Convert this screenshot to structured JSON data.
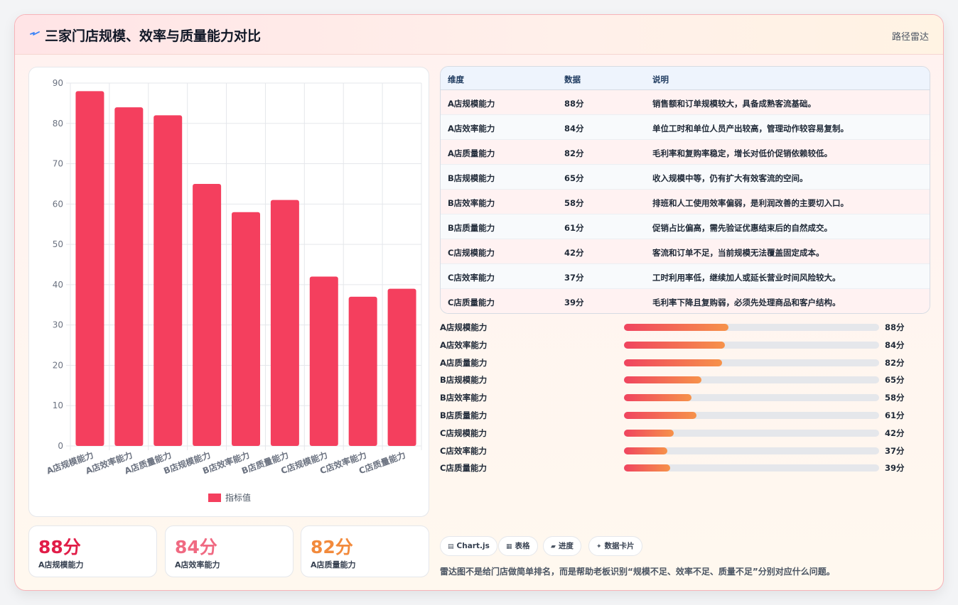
{
  "header": {
    "title": "三家门店规模、效率与质量能力对比",
    "tag": "路径雷达",
    "logo_icon": "lightning-icon"
  },
  "chart_data": {
    "type": "bar",
    "categories": [
      "A店规模能力",
      "A店效率能力",
      "A店质量能力",
      "B店规模能力",
      "B店效率能力",
      "B店质量能力",
      "C店规模能力",
      "C店效率能力",
      "C店质量能力"
    ],
    "series": [
      {
        "name": "指标值",
        "values": [
          88,
          84,
          82,
          65,
          58,
          61,
          42,
          37,
          39
        ],
        "color": "#f43f5e"
      }
    ],
    "title": "",
    "xlabel": "",
    "ylabel": "",
    "ylim": [
      0,
      90
    ],
    "yticks": [
      0,
      10,
      20,
      30,
      40,
      50,
      60,
      70,
      80,
      90
    ],
    "grid": true,
    "legend": "bottom"
  },
  "kpis": [
    {
      "value": "88分",
      "label": "A店规模能力",
      "color": "#e11d48"
    },
    {
      "value": "84分",
      "label": "A店效率能力",
      "color": "#f06a82"
    },
    {
      "value": "82分",
      "label": "A店质量能力",
      "color": "#f28a3c"
    }
  ],
  "table": {
    "headers": [
      "维度",
      "数据",
      "说明"
    ],
    "rows": [
      {
        "dim": "A店规模能力",
        "val": "88分",
        "desc": "销售额和订单规模较大，具备成熟客流基础。"
      },
      {
        "dim": "A店效率能力",
        "val": "84分",
        "desc": "单位工时和单位人员产出较高，管理动作较容易复制。"
      },
      {
        "dim": "A店质量能力",
        "val": "82分",
        "desc": "毛利率和复购率稳定，增长对低价促销依赖较低。"
      },
      {
        "dim": "B店规模能力",
        "val": "65分",
        "desc": "收入规模中等，仍有扩大有效客流的空间。"
      },
      {
        "dim": "B店效率能力",
        "val": "58分",
        "desc": "排班和人工使用效率偏弱，是利润改善的主要切入口。"
      },
      {
        "dim": "B店质量能力",
        "val": "61分",
        "desc": "促销占比偏高，需先验证优惠结束后的自然成交。"
      },
      {
        "dim": "C店规模能力",
        "val": "42分",
        "desc": "客流和订单不足，当前规模无法覆盖固定成本。"
      },
      {
        "dim": "C店效率能力",
        "val": "37分",
        "desc": "工时利用率低，继续加人或延长营业时间风险较大。"
      },
      {
        "dim": "C店质量能力",
        "val": "39分",
        "desc": "毛利率下降且复购弱，必须先处理商品和客户结构。"
      }
    ]
  },
  "progress": [
    {
      "name": "A店规模能力",
      "value": "88分",
      "fraction": 0.41
    },
    {
      "name": "A店效率能力",
      "value": "84分",
      "fraction": 0.395
    },
    {
      "name": "A店质量能力",
      "value": "82分",
      "fraction": 0.385
    },
    {
      "name": "B店规模能力",
      "value": "65分",
      "fraction": 0.305
    },
    {
      "name": "B店效率能力",
      "value": "58分",
      "fraction": 0.265
    },
    {
      "name": "B店质量能力",
      "value": "61分",
      "fraction": 0.285
    },
    {
      "name": "C店规模能力",
      "value": "42分",
      "fraction": 0.195
    },
    {
      "name": "C店效率能力",
      "value": "37分",
      "fraction": 0.17
    },
    {
      "name": "C店质量能力",
      "value": "39分",
      "fraction": 0.18
    }
  ],
  "chips": [
    {
      "icon": "▤",
      "icon_name": "chart-icon",
      "label": "Chart.js"
    },
    {
      "icon": "▦",
      "icon_name": "table-icon",
      "label": "表格"
    },
    {
      "icon": "▰",
      "icon_name": "progress-icon",
      "label": "进度"
    },
    {
      "icon": "✦",
      "icon_name": "card-icon",
      "label": "数据卡片"
    }
  ],
  "note": "雷达图不是给门店做简单排名，而是帮助老板识别“规模不足、效率不足、质量不足”分别对应什么问题。"
}
